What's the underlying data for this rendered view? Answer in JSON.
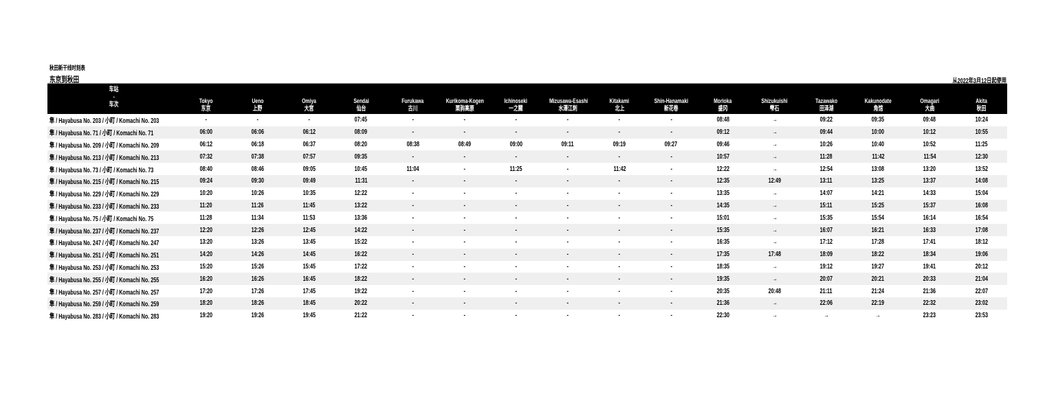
{
  "header": {
    "subtitle": "秋田新干线时刻表",
    "title": "东京到秋田",
    "valid_from": "从2022年3月12日起使用"
  },
  "table": {
    "corner": {
      "top": "车站",
      "mid": "-",
      "bottom": "车次"
    },
    "stations": [
      {
        "en": "Tokyo",
        "zh": "东京"
      },
      {
        "en": "Ueno",
        "zh": "上野"
      },
      {
        "en": "Omiya",
        "zh": "大宫"
      },
      {
        "en": "Sendai",
        "zh": "仙台"
      },
      {
        "en": "Furukawa",
        "zh": "古川"
      },
      {
        "en": "Kurikoma-Kogen",
        "zh": "栗驹高原"
      },
      {
        "en": "Ichinoseki",
        "zh": "一之關"
      },
      {
        "en": "Mizusawa-Esashi",
        "zh": "水澤江刺"
      },
      {
        "en": "Kitakami",
        "zh": "北上"
      },
      {
        "en": "Shin-Hanamaki",
        "zh": "新花卷"
      },
      {
        "en": "Morioka",
        "zh": "盛冈"
      },
      {
        "en": "Shizukuishi",
        "zh": "雫石"
      },
      {
        "en": "Tazawako",
        "zh": "田泽湖"
      },
      {
        "en": "Kakunodate",
        "zh": "角馆"
      },
      {
        "en": "Omagari",
        "zh": "大曲"
      },
      {
        "en": "Akita",
        "zh": "秋田"
      }
    ],
    "rows": [
      {
        "train": "隼 / Hayabusa No. 203 / 小町 / Komachi No. 203",
        "times": [
          "-",
          "-",
          "-",
          "07:45",
          "-",
          "-",
          "-",
          "-",
          "-",
          "-",
          "08:48",
          "→",
          "09:22",
          "09:35",
          "09:48",
          "10:24"
        ]
      },
      {
        "train": "隼 / Hayabusa No. 71 / 小町 / Komachi No. 71",
        "times": [
          "06:00",
          "06:06",
          "06:12",
          "08:09",
          "-",
          "-",
          "-",
          "-",
          "-",
          "-",
          "09:12",
          "→",
          "09:44",
          "10:00",
          "10:12",
          "10:55"
        ]
      },
      {
        "train": "隼 / Hayabusa No. 209 / 小町 / Komachi No. 209",
        "times": [
          "06:12",
          "06:18",
          "06:37",
          "08:20",
          "08:38",
          "08:49",
          "09:00",
          "09:11",
          "09:19",
          "09:27",
          "09:46",
          "→",
          "10:26",
          "10:40",
          "10:52",
          "11:25"
        ]
      },
      {
        "train": "隼 / Hayabusa No. 213 / 小町 / Komachi No. 213",
        "times": [
          "07:32",
          "07:38",
          "07:57",
          "09:35",
          "-",
          "-",
          "-",
          "-",
          "-",
          "-",
          "10:57",
          "→",
          "11:28",
          "11:42",
          "11:54",
          "12:30"
        ]
      },
      {
        "train": "隼 / Hayabusa No. 73 / 小町 / Komachi No. 73",
        "times": [
          "08:40",
          "08:46",
          "09:05",
          "10:45",
          "11:04",
          "-",
          "11:25",
          "-",
          "11:42",
          "-",
          "12:22",
          "→",
          "12:54",
          "13:08",
          "13:20",
          "13:52"
        ]
      },
      {
        "train": "隼 / Hayabusa No. 215 / 小町 / Komachi No. 215",
        "times": [
          "09:24",
          "09:30",
          "09:49",
          "11:31",
          "-",
          "-",
          "-",
          "-",
          "-",
          "-",
          "12:35",
          "12:49",
          "13:11",
          "13:25",
          "13:37",
          "14:08"
        ]
      },
      {
        "train": "隼 / Hayabusa No. 229 / 小町 / Komachi No. 229",
        "times": [
          "10:20",
          "10:26",
          "10:35",
          "12:22",
          "-",
          "-",
          "-",
          "-",
          "-",
          "-",
          "13:35",
          "→",
          "14:07",
          "14:21",
          "14:33",
          "15:04"
        ]
      },
      {
        "train": "隼 / Hayabusa No. 233 / 小町 / Komachi No. 233",
        "times": [
          "11:20",
          "11:26",
          "11:45",
          "13:22",
          "-",
          "-",
          "-",
          "-",
          "-",
          "-",
          "14:35",
          "→",
          "15:11",
          "15:25",
          "15:37",
          "16:08"
        ]
      },
      {
        "train": "隼 / Hayabusa No. 75 / 小町 / Komachi No. 75",
        "times": [
          "11:28",
          "11:34",
          "11:53",
          "13:36",
          "-",
          "-",
          "-",
          "-",
          "-",
          "-",
          "15:01",
          "→",
          "15:35",
          "15:54",
          "16:14",
          "16:54"
        ]
      },
      {
        "train": "隼 / Hayabusa No. 237 / 小町 / Komachi No. 237",
        "times": [
          "12:20",
          "12:26",
          "12:45",
          "14:22",
          "-",
          "-",
          "-",
          "-",
          "-",
          "-",
          "15:35",
          "→",
          "16:07",
          "16:21",
          "16:33",
          "17:08"
        ]
      },
      {
        "train": "隼 / Hayabusa No. 247 / 小町 / Komachi No. 247",
        "times": [
          "13:20",
          "13:26",
          "13:45",
          "15:22",
          "-",
          "-",
          "-",
          "-",
          "-",
          "-",
          "16:35",
          "→",
          "17:12",
          "17:28",
          "17:41",
          "18:12"
        ]
      },
      {
        "train": "隼 / Hayabusa No. 251 / 小町 / Komachi No. 251",
        "times": [
          "14:20",
          "14:26",
          "14:45",
          "16:22",
          "-",
          "-",
          "-",
          "-",
          "-",
          "-",
          "17:35",
          "17:48",
          "18:09",
          "18:22",
          "18:34",
          "19:06"
        ]
      },
      {
        "train": "隼 / Hayabusa No. 253 / 小町 / Komachi No. 253",
        "times": [
          "15:20",
          "15:26",
          "15:45",
          "17:22",
          "-",
          "-",
          "-",
          "-",
          "-",
          "-",
          "18:35",
          "→",
          "19:12",
          "19:27",
          "19:41",
          "20:12"
        ]
      },
      {
        "train": "隼 / Hayabusa No. 255 / 小町 / Komachi No. 255",
        "times": [
          "16:20",
          "16:26",
          "16:45",
          "18:22",
          "-",
          "-",
          "-",
          "-",
          "-",
          "-",
          "19:35",
          "→",
          "20:07",
          "20:21",
          "20:33",
          "21:04"
        ]
      },
      {
        "train": "隼 / Hayabusa No. 257 / 小町 / Komachi No. 257",
        "times": [
          "17:20",
          "17:26",
          "17:45",
          "19:22",
          "-",
          "-",
          "-",
          "-",
          "-",
          "-",
          "20:35",
          "20:48",
          "21:11",
          "21:24",
          "21:36",
          "22:07"
        ]
      },
      {
        "train": "隼 / Hayabusa No. 259 / 小町 / Komachi No. 259",
        "times": [
          "18:20",
          "18:26",
          "18:45",
          "20:22",
          "-",
          "-",
          "-",
          "-",
          "-",
          "-",
          "21:36",
          "→",
          "22:06",
          "22:19",
          "22:32",
          "23:02"
        ]
      },
      {
        "train": "隼 / Hayabusa No. 283 / 小町 / Komachi No. 283",
        "times": [
          "19:20",
          "19:26",
          "19:45",
          "21:22",
          "-",
          "-",
          "-",
          "-",
          "-",
          "-",
          "22:30",
          "→",
          "→",
          "→",
          "23:23",
          "23:53"
        ]
      }
    ]
  }
}
